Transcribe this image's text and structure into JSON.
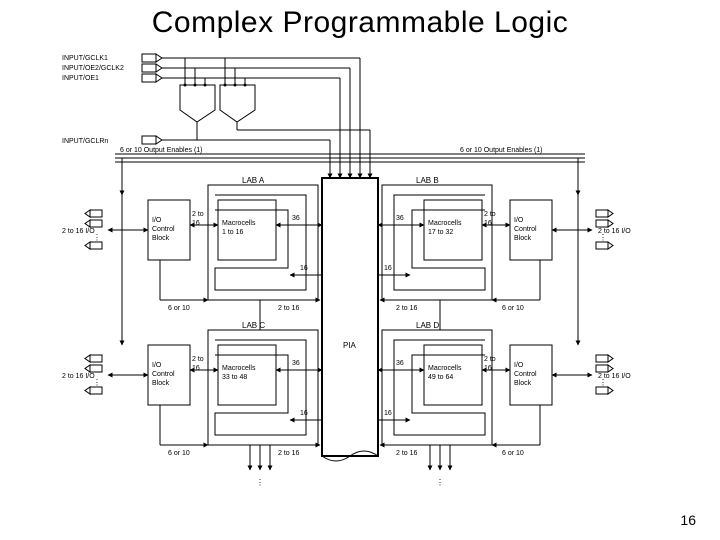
{
  "title": "Complex Programmable Logic",
  "page": "16",
  "inputs": {
    "gclk1": "INPUT/GCLK1",
    "oe2": "INPUT/OE2/GCLK2",
    "oe1": "INPUT/OE1",
    "gclrn": "INPUT/GCLRn"
  },
  "oe_bus": "6 or 10 Output Enables (1)",
  "pia": "PIA",
  "lab": {
    "a": {
      "name": "LAB A",
      "macro": "Macrocells\n1 to 16"
    },
    "b": {
      "name": "LAB B",
      "macro": "Macrocells\n17 to 32"
    },
    "c": {
      "name": "LAB C",
      "macro": "Macrocells\n33 to 48"
    },
    "d": {
      "name": "LAB D",
      "macro": "Macrocells\n49 to 64"
    }
  },
  "io": {
    "ctrl": "I/O\nControl\nBlock",
    "range": "2 to 16 I/O",
    "w216": "2 to\n16",
    "w36": "36",
    "w16": "16",
    "w216h": "2 to 16",
    "w6or10": "6 or 10"
  },
  "colors": {
    "line": "#000",
    "bg": "#fff"
  }
}
